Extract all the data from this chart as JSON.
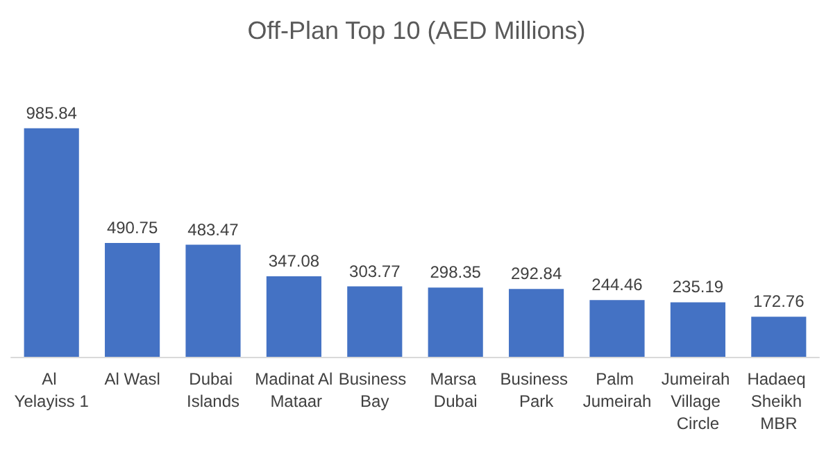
{
  "chart_data": {
    "type": "bar",
    "title": "Off-Plan Top 10 (AED Millions)",
    "categories": [
      "Al Yelayiss 1",
      "Al Wasl",
      "Dubai Islands",
      "Madinat Al Mataar",
      "Business Bay",
      "Marsa Dubai",
      "Business Park",
      "Palm Jumeirah",
      "Jumeirah Village Circle",
      "Hadaeq Sheikh MBR"
    ],
    "values": [
      985.84,
      490.75,
      483.47,
      347.08,
      303.77,
      298.35,
      292.84,
      244.46,
      235.19,
      172.76
    ],
    "color": "#4472c4",
    "data_labels": true
  }
}
